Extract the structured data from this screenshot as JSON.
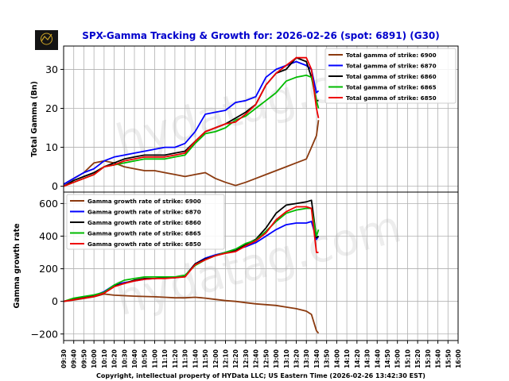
{
  "title": "SPX-Gamma Tracking & Growth for: 2026-02-26 (spot: 6891) (G30)",
  "footer": "Copyright, intellectual property of HYData LLC; US Eastern Time (2026-02-26 13:42:30 EST)",
  "watermark": "hydatag.com",
  "logo": {
    "text": "HYData"
  },
  "colors": {
    "title": "#0000cc",
    "6900": "#8b3a0f",
    "6870": "#0000ff",
    "6860": "#000000",
    "6865": "#00bb00",
    "6850": "#ee0000"
  },
  "x_ticks": [
    "09:30",
    "09:40",
    "09:50",
    "10:00",
    "10:10",
    "10:20",
    "10:30",
    "10:40",
    "10:50",
    "11:00",
    "11:10",
    "11:20",
    "11:30",
    "11:40",
    "11:50",
    "12:00",
    "12:10",
    "12:20",
    "12:30",
    "12:40",
    "12:50",
    "13:00",
    "13:10",
    "13:20",
    "13:30",
    "13:40",
    "13:50",
    "14:00",
    "14:10",
    "14:20",
    "14:30",
    "14:40",
    "14:50",
    "15:00",
    "15:10",
    "15:20",
    "15:30",
    "15:40",
    "15:50",
    "16:00"
  ],
  "chart_data": [
    {
      "type": "line",
      "title": "SPX-Gamma Tracking & Growth for: 2026-02-26 (spot: 6891) (G30)",
      "xlabel": "",
      "ylabel": "Total Gamma (Bn)",
      "yticks": [
        0,
        10,
        20,
        30
      ],
      "ylim": [
        -1.5,
        36
      ],
      "xlim": [
        "09:30",
        "16:00"
      ],
      "grid": true,
      "legend_position": "upper right",
      "x": [
        "09:30",
        "09:40",
        "09:50",
        "10:00",
        "10:10",
        "10:20",
        "10:30",
        "10:40",
        "10:50",
        "11:00",
        "11:10",
        "11:20",
        "11:30",
        "11:40",
        "11:50",
        "12:00",
        "12:10",
        "12:20",
        "12:30",
        "12:40",
        "12:50",
        "13:00",
        "13:10",
        "13:20",
        "13:30",
        "13:35",
        "13:40",
        "13:42"
      ],
      "series": [
        {
          "name": "Total gamma of strike: 6900",
          "color_key": "6900",
          "values": [
            0.5,
            2,
            3.5,
            6,
            6.5,
            6,
            5,
            4.5,
            4,
            4,
            3.5,
            3,
            2.5,
            3,
            3.5,
            2,
            1,
            0.2,
            1,
            2,
            3,
            4,
            5,
            6,
            7,
            10,
            13,
            17
          ]
        },
        {
          "name": "Total gamma of strike: 6870",
          "color_key": "6870",
          "values": [
            0.5,
            2,
            3.5,
            4.5,
            6.5,
            7.5,
            8,
            8.5,
            9,
            9.5,
            10,
            10,
            11,
            14,
            18.5,
            19,
            19.5,
            21.5,
            22,
            23,
            28,
            30,
            31,
            32,
            31,
            30,
            24,
            24.5
          ]
        },
        {
          "name": "Total gamma of strike: 6860",
          "color_key": "6860",
          "values": [
            0,
            1.5,
            2.5,
            3.5,
            5,
            6,
            7,
            7.5,
            8,
            8,
            8,
            8.5,
            9,
            11.5,
            14,
            15,
            16,
            17.5,
            19,
            21,
            26,
            29,
            30,
            33,
            32,
            28,
            22,
            22
          ]
        },
        {
          "name": "Total gamma of strike: 6865",
          "color_key": "6865",
          "values": [
            0,
            1,
            2,
            3,
            5,
            5.5,
            6,
            6.5,
            7,
            7,
            7,
            7.5,
            8,
            11,
            13.5,
            14,
            15,
            17,
            18,
            20,
            22,
            24,
            27,
            28,
            28.5,
            28,
            22,
            20
          ]
        },
        {
          "name": "Total gamma of strike: 6850",
          "color_key": "6850",
          "values": [
            0,
            1,
            2,
            3,
            5,
            5.5,
            6.5,
            7,
            7.5,
            7.5,
            7.5,
            8,
            8.5,
            11.5,
            14,
            15,
            16,
            16.5,
            18.5,
            21,
            26,
            29,
            31,
            33,
            33,
            30,
            20,
            17.5
          ]
        }
      ]
    },
    {
      "type": "line",
      "xlabel": "",
      "ylabel": "Gamma growth rate",
      "yticks": [
        -200,
        0,
        200,
        400,
        600
      ],
      "ylim": [
        -240,
        670
      ],
      "xlim": [
        "09:30",
        "16:00"
      ],
      "grid": true,
      "legend_position": "upper left",
      "x": [
        "09:30",
        "09:40",
        "09:50",
        "10:00",
        "10:10",
        "10:20",
        "10:30",
        "10:40",
        "10:50",
        "11:00",
        "11:10",
        "11:20",
        "11:30",
        "11:40",
        "11:50",
        "12:00",
        "12:10",
        "12:20",
        "12:30",
        "12:40",
        "12:50",
        "13:00",
        "13:10",
        "13:20",
        "13:30",
        "13:35",
        "13:40",
        "13:42"
      ],
      "series": [
        {
          "name": "Gamma growth rate of strike: 6900",
          "color_key": "6900",
          "values": [
            0,
            8,
            18,
            28,
            45,
            38,
            35,
            32,
            30,
            28,
            25,
            22,
            22,
            25,
            20,
            12,
            5,
            0,
            -8,
            -15,
            -20,
            -25,
            -35,
            -45,
            -60,
            -80,
            -180,
            -195
          ]
        },
        {
          "name": "Gamma growth rate of strike: 6870",
          "color_key": "6870",
          "values": [
            0,
            15,
            28,
            35,
            60,
            100,
            115,
            125,
            135,
            140,
            145,
            145,
            155,
            230,
            265,
            285,
            300,
            320,
            335,
            360,
            400,
            440,
            470,
            480,
            480,
            490,
            380,
            400
          ]
        },
        {
          "name": "Gamma growth rate of strike: 6860",
          "color_key": "6860",
          "values": [
            0,
            15,
            25,
            35,
            55,
            95,
            110,
            130,
            140,
            140,
            145,
            145,
            155,
            230,
            260,
            280,
            300,
            310,
            350,
            380,
            450,
            540,
            590,
            600,
            610,
            620,
            390,
            400
          ]
        },
        {
          "name": "Gamma growth rate of strike: 6865",
          "color_key": "6865",
          "values": [
            0,
            20,
            30,
            40,
            55,
            100,
            130,
            140,
            150,
            150,
            150,
            150,
            160,
            220,
            255,
            280,
            300,
            320,
            355,
            375,
            430,
            490,
            540,
            560,
            570,
            570,
            400,
            440
          ]
        },
        {
          "name": "Gamma growth rate of strike: 6850",
          "color_key": "6850",
          "values": [
            0,
            10,
            20,
            30,
            50,
            90,
            110,
            125,
            135,
            140,
            140,
            145,
            150,
            225,
            255,
            280,
            295,
            305,
            340,
            370,
            420,
            500,
            550,
            580,
            580,
            570,
            300,
            300
          ]
        }
      ]
    }
  ]
}
